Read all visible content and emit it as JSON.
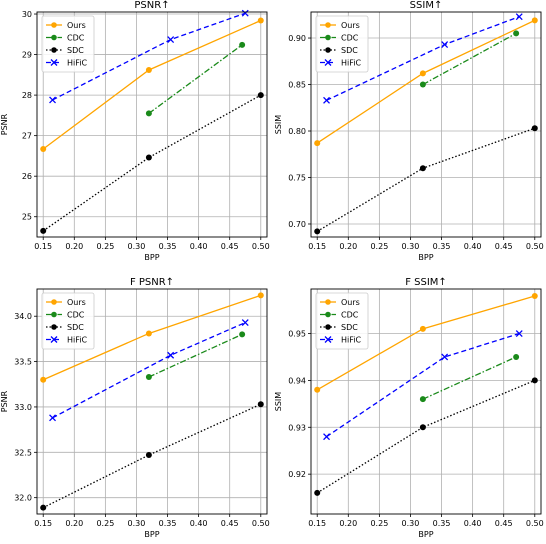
{
  "chart_data": [
    {
      "type": "line",
      "title": "PSNR↑",
      "xlabel": "BPP",
      "ylabel": "PSNR",
      "xlim": [
        0.14,
        0.51
      ],
      "ylim": [
        24.5,
        30.05
      ],
      "xticks": [
        "0.15",
        "0.20",
        "0.25",
        "0.30",
        "0.35",
        "0.40",
        "0.45",
        "0.50"
      ],
      "yticks": [
        "25",
        "26",
        "27",
        "28",
        "29",
        "30"
      ],
      "grid": true,
      "legend": "top-left",
      "series": [
        {
          "name": "Ours",
          "color": "#ffa500",
          "marker": "circle",
          "dash": "solid",
          "x": [
            0.15,
            0.32,
            0.5
          ],
          "y": [
            26.67,
            28.62,
            29.84
          ]
        },
        {
          "name": "CDC",
          "color": "#1a8a1a",
          "marker": "circle",
          "dash": "dashdot",
          "x": [
            0.32,
            0.47
          ],
          "y": [
            27.55,
            29.24
          ]
        },
        {
          "name": "SDC",
          "color": "#000000",
          "marker": "circle",
          "dash": "dotted",
          "x": [
            0.15,
            0.32,
            0.5
          ],
          "y": [
            24.65,
            26.46,
            28.0
          ]
        },
        {
          "name": "HiFiC",
          "color": "#0000ff",
          "marker": "x",
          "dash": "dashed",
          "x": [
            0.165,
            0.355,
            0.475
          ],
          "y": [
            27.88,
            29.37,
            30.02
          ]
        }
      ]
    },
    {
      "type": "line",
      "title": "SSIM↑",
      "xlabel": "BPP",
      "ylabel": "SSIM",
      "xlim": [
        0.14,
        0.51
      ],
      "ylim": [
        0.686,
        0.928
      ],
      "xticks": [
        "0.15",
        "0.20",
        "0.25",
        "0.30",
        "0.35",
        "0.40",
        "0.45",
        "0.50"
      ],
      "yticks": [
        "0.70",
        "0.75",
        "0.80",
        "0.85",
        "0.90"
      ],
      "grid": true,
      "legend": "top-left",
      "series": [
        {
          "name": "Ours",
          "color": "#ffa500",
          "marker": "circle",
          "dash": "solid",
          "x": [
            0.15,
            0.32,
            0.5
          ],
          "y": [
            0.787,
            0.862,
            0.919
          ]
        },
        {
          "name": "CDC",
          "color": "#1a8a1a",
          "marker": "circle",
          "dash": "dashdot",
          "x": [
            0.32,
            0.47
          ],
          "y": [
            0.85,
            0.905
          ]
        },
        {
          "name": "SDC",
          "color": "#000000",
          "marker": "circle",
          "dash": "dotted",
          "x": [
            0.15,
            0.32,
            0.5
          ],
          "y": [
            0.692,
            0.76,
            0.803
          ]
        },
        {
          "name": "HiFiC",
          "color": "#0000ff",
          "marker": "x",
          "dash": "dashed",
          "x": [
            0.165,
            0.355,
            0.475
          ],
          "y": [
            0.833,
            0.893,
            0.923
          ]
        }
      ]
    },
    {
      "type": "line",
      "title": "F PSNR↑",
      "xlabel": "BPP",
      "ylabel": "PSNR",
      "xlim": [
        0.14,
        0.51
      ],
      "ylim": [
        31.82,
        34.3
      ],
      "xticks": [
        "0.15",
        "0.20",
        "0.25",
        "0.30",
        "0.35",
        "0.40",
        "0.45",
        "0.50"
      ],
      "yticks": [
        "32.0",
        "32.5",
        "33.0",
        "33.5",
        "34.0"
      ],
      "grid": true,
      "legend": "top-left",
      "series": [
        {
          "name": "Ours",
          "color": "#ffa500",
          "marker": "circle",
          "dash": "solid",
          "x": [
            0.15,
            0.32,
            0.5
          ],
          "y": [
            33.3,
            33.81,
            34.23
          ]
        },
        {
          "name": "CDC",
          "color": "#1a8a1a",
          "marker": "circle",
          "dash": "dashdot",
          "x": [
            0.32,
            0.47
          ],
          "y": [
            33.33,
            33.8
          ]
        },
        {
          "name": "SDC",
          "color": "#000000",
          "marker": "circle",
          "dash": "dotted",
          "x": [
            0.15,
            0.32,
            0.5
          ],
          "y": [
            31.89,
            32.47,
            33.03
          ]
        },
        {
          "name": "HiFiC",
          "color": "#0000ff",
          "marker": "x",
          "dash": "dashed",
          "x": [
            0.165,
            0.355,
            0.475
          ],
          "y": [
            32.88,
            33.57,
            33.93
          ]
        }
      ]
    },
    {
      "type": "line",
      "title": "F SSIM↑",
      "xlabel": "BPP",
      "ylabel": "SSIM",
      "xlim": [
        0.14,
        0.51
      ],
      "ylim": [
        0.9115,
        0.9595
      ],
      "xticks": [
        "0.15",
        "0.20",
        "0.25",
        "0.30",
        "0.35",
        "0.40",
        "0.45",
        "0.50"
      ],
      "yticks": [
        "0.92",
        "0.93",
        "0.94",
        "0.95"
      ],
      "grid": true,
      "legend": "top-left",
      "series": [
        {
          "name": "Ours",
          "color": "#ffa500",
          "marker": "circle",
          "dash": "solid",
          "x": [
            0.15,
            0.32,
            0.5
          ],
          "y": [
            0.938,
            0.951,
            0.958
          ]
        },
        {
          "name": "CDC",
          "color": "#1a8a1a",
          "marker": "circle",
          "dash": "dashdot",
          "x": [
            0.32,
            0.47
          ],
          "y": [
            0.936,
            0.945
          ]
        },
        {
          "name": "SDC",
          "color": "#000000",
          "marker": "circle",
          "dash": "dotted",
          "x": [
            0.15,
            0.32,
            0.5
          ],
          "y": [
            0.916,
            0.93,
            0.94
          ]
        },
        {
          "name": "HiFiC",
          "color": "#0000ff",
          "marker": "x",
          "dash": "dashed",
          "x": [
            0.165,
            0.355,
            0.475
          ],
          "y": [
            0.928,
            0.945,
            0.95
          ]
        }
      ]
    }
  ]
}
